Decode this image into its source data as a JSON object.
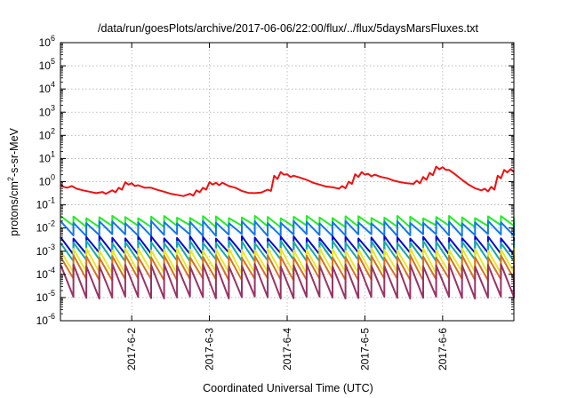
{
  "chart_data": {
    "type": "line",
    "title": "/data/run/goesPlots/archive/2017-06-06/22:00/flux/../flux/5daysMarsFluxes.txt",
    "xlabel": "Coordinated Universal Time (UTC)",
    "ylabel_prefix": "protons/cm",
    "ylabel_sup": "2",
    "ylabel_suffix": "-s-sr-MeV",
    "x_scale": "time",
    "x_range": [
      "2017-06-01T02:00",
      "2017-06-06T22:00"
    ],
    "x_ticks": [
      {
        "label": "2017-6-2",
        "date": "2017-06-02T00:00"
      },
      {
        "label": "2017-6-3",
        "date": "2017-06-03T00:00"
      },
      {
        "label": "2017-6-4",
        "date": "2017-06-04T00:00"
      },
      {
        "label": "2017-6-5",
        "date": "2017-06-05T00:00"
      },
      {
        "label": "2017-6-6",
        "date": "2017-06-06T00:00"
      }
    ],
    "y_scale": "log",
    "y_range": [
      1e-06,
      1000000.0
    ],
    "y_ticks": [
      {
        "base": "10",
        "exp": "-6",
        "value": 1e-06
      },
      {
        "base": "10",
        "exp": "-5",
        "value": 1e-05
      },
      {
        "base": "10",
        "exp": "-4",
        "value": 0.0001
      },
      {
        "base": "10",
        "exp": "-3",
        "value": 0.001
      },
      {
        "base": "10",
        "exp": "-2",
        "value": 0.01
      },
      {
        "base": "10",
        "exp": "-1",
        "value": 0.1
      },
      {
        "base": "10",
        "exp": "0",
        "value": 1
      },
      {
        "base": "10",
        "exp": "1",
        "value": 10
      },
      {
        "base": "10",
        "exp": "2",
        "value": 100
      },
      {
        "base": "10",
        "exp": "3",
        "value": 1000
      },
      {
        "base": "10",
        "exp": "4",
        "value": 10000
      },
      {
        "base": "10",
        "exp": "5",
        "value": 100000
      },
      {
        "base": "10",
        "exp": "6",
        "value": 1000000
      }
    ],
    "grid": true,
    "legend": "none",
    "series": [
      {
        "color": "#ee1111",
        "values": [
          [
            "2017-06-01T02:00",
            0.75
          ],
          [
            "2017-06-01T03:00",
            0.6
          ],
          [
            "2017-06-01T04:00",
            0.55
          ],
          [
            "2017-06-01T05:30",
            0.65
          ],
          [
            "2017-06-01T07:00",
            0.5
          ],
          [
            "2017-06-01T09:00",
            0.42
          ],
          [
            "2017-06-01T11:00",
            0.37
          ],
          [
            "2017-06-01T13:00",
            0.32
          ],
          [
            "2017-06-01T15:00",
            0.36
          ],
          [
            "2017-06-01T16:00",
            0.3
          ],
          [
            "2017-06-01T18:00",
            0.42
          ],
          [
            "2017-06-01T19:00",
            0.35
          ],
          [
            "2017-06-01T20:00",
            0.55
          ],
          [
            "2017-06-01T21:00",
            0.45
          ],
          [
            "2017-06-01T22:00",
            0.95
          ],
          [
            "2017-06-01T23:00",
            0.75
          ],
          [
            "2017-06-02T00:00",
            0.85
          ],
          [
            "2017-06-02T01:00",
            0.65
          ],
          [
            "2017-06-02T02:00",
            0.7
          ],
          [
            "2017-06-02T04:00",
            0.55
          ],
          [
            "2017-06-02T06:00",
            0.55
          ],
          [
            "2017-06-02T08:00",
            0.44
          ],
          [
            "2017-06-02T10:00",
            0.37
          ],
          [
            "2017-06-02T12:00",
            0.3
          ],
          [
            "2017-06-02T14:00",
            0.27
          ],
          [
            "2017-06-02T16:00",
            0.24
          ],
          [
            "2017-06-02T18:00",
            0.3
          ],
          [
            "2017-06-02T19:00",
            0.25
          ],
          [
            "2017-06-02T20:00",
            0.42
          ],
          [
            "2017-06-02T21:00",
            0.35
          ],
          [
            "2017-06-02T22:00",
            0.55
          ],
          [
            "2017-06-02T23:00",
            0.45
          ],
          [
            "2017-06-03T00:00",
            0.95
          ],
          [
            "2017-06-03T01:00",
            0.75
          ],
          [
            "2017-06-03T02:00",
            0.9
          ],
          [
            "2017-06-03T03:00",
            0.7
          ],
          [
            "2017-06-03T04:00",
            0.9
          ],
          [
            "2017-06-03T06:00",
            0.65
          ],
          [
            "2017-06-03T08:00",
            0.55
          ],
          [
            "2017-06-03T10:00",
            0.4
          ],
          [
            "2017-06-03T12:00",
            0.33
          ],
          [
            "2017-06-03T14:00",
            0.32
          ],
          [
            "2017-06-03T16:00",
            0.34
          ],
          [
            "2017-06-03T18:00",
            0.45
          ],
          [
            "2017-06-03T19:00",
            0.4
          ],
          [
            "2017-06-03T20:00",
            1.8
          ],
          [
            "2017-06-03T21:00",
            1.3
          ],
          [
            "2017-06-03T22:00",
            2.6
          ],
          [
            "2017-06-03T23:00",
            2.0
          ],
          [
            "2017-06-04T00:00",
            2.1
          ],
          [
            "2017-06-04T01:00",
            1.6
          ],
          [
            "2017-06-04T02:00",
            1.8
          ],
          [
            "2017-06-04T04:00",
            1.5
          ],
          [
            "2017-06-04T06:00",
            1.2
          ],
          [
            "2017-06-04T08:00",
            0.9
          ],
          [
            "2017-06-04T10:00",
            0.75
          ],
          [
            "2017-06-04T12:00",
            0.62
          ],
          [
            "2017-06-04T14:00",
            0.58
          ],
          [
            "2017-06-04T16:00",
            0.5
          ],
          [
            "2017-06-04T17:00",
            0.65
          ],
          [
            "2017-06-04T18:00",
            0.52
          ],
          [
            "2017-06-04T19:00",
            1.0
          ],
          [
            "2017-06-04T20:00",
            0.8
          ],
          [
            "2017-06-04T21:00",
            2.1
          ],
          [
            "2017-06-04T22:00",
            1.6
          ],
          [
            "2017-06-04T23:00",
            2.6
          ],
          [
            "2017-06-05T00:00",
            2.0
          ],
          [
            "2017-06-05T01:00",
            2.2
          ],
          [
            "2017-06-05T02:00",
            1.7
          ],
          [
            "2017-06-05T03:00",
            2.0
          ],
          [
            "2017-06-05T05:00",
            1.6
          ],
          [
            "2017-06-05T07:00",
            1.4
          ],
          [
            "2017-06-05T09:00",
            1.1
          ],
          [
            "2017-06-05T11:00",
            0.95
          ],
          [
            "2017-06-05T13:00",
            0.85
          ],
          [
            "2017-06-05T15:00",
            0.8
          ],
          [
            "2017-06-05T16:00",
            1.1
          ],
          [
            "2017-06-05T17:00",
            0.85
          ],
          [
            "2017-06-05T18:00",
            1.6
          ],
          [
            "2017-06-05T19:00",
            1.2
          ],
          [
            "2017-06-05T20:00",
            2.4
          ],
          [
            "2017-06-05T21:00",
            1.9
          ],
          [
            "2017-06-05T22:00",
            4.5
          ],
          [
            "2017-06-05T23:00",
            3.4
          ],
          [
            "2017-06-06T00:00",
            4.2
          ],
          [
            "2017-06-06T01:00",
            3.2
          ],
          [
            "2017-06-06T02:00",
            3.2
          ],
          [
            "2017-06-06T04:00",
            2.0
          ],
          [
            "2017-06-06T06:00",
            1.2
          ],
          [
            "2017-06-06T08:00",
            0.75
          ],
          [
            "2017-06-06T10:00",
            0.52
          ],
          [
            "2017-06-06T12:00",
            0.42
          ],
          [
            "2017-06-06T13:00",
            0.5
          ],
          [
            "2017-06-06T14:00",
            0.38
          ],
          [
            "2017-06-06T15:00",
            0.6
          ],
          [
            "2017-06-06T16:00",
            0.45
          ],
          [
            "2017-06-06T17:00",
            1.8
          ],
          [
            "2017-06-06T18:00",
            1.4
          ],
          [
            "2017-06-06T19:00",
            3.2
          ],
          [
            "2017-06-06T20:00",
            2.5
          ],
          [
            "2017-06-06T21:00",
            3.5
          ],
          [
            "2017-06-06T22:00",
            2.6
          ]
        ]
      },
      {
        "color": "#22ee22",
        "sawtooth": {
          "high": 0.03,
          "low": 0.012,
          "period_hours": 4
        }
      },
      {
        "color": "#1177ee",
        "sawtooth": {
          "high": 0.018,
          "low": 0.005,
          "period_hours": 4
        }
      },
      {
        "color": "#0a0ad0",
        "sawtooth": {
          "high": 0.004,
          "low": 0.0008,
          "period_hours": 4
        }
      },
      {
        "color": "#11aaaa",
        "sawtooth": {
          "high": 0.0025,
          "low": 0.0004,
          "period_hours": 4
        }
      },
      {
        "color": "#e8e822",
        "sawtooth": {
          "high": 0.0012,
          "low": 0.00012,
          "period_hours": 4
        }
      },
      {
        "color": "#d87020",
        "sawtooth": {
          "high": 0.0006,
          "low": 6e-05,
          "period_hours": 4
        }
      },
      {
        "color": "#993366",
        "sawtooth": {
          "high": 0.00025,
          "low": 1e-05,
          "period_hours": 4
        }
      }
    ]
  }
}
